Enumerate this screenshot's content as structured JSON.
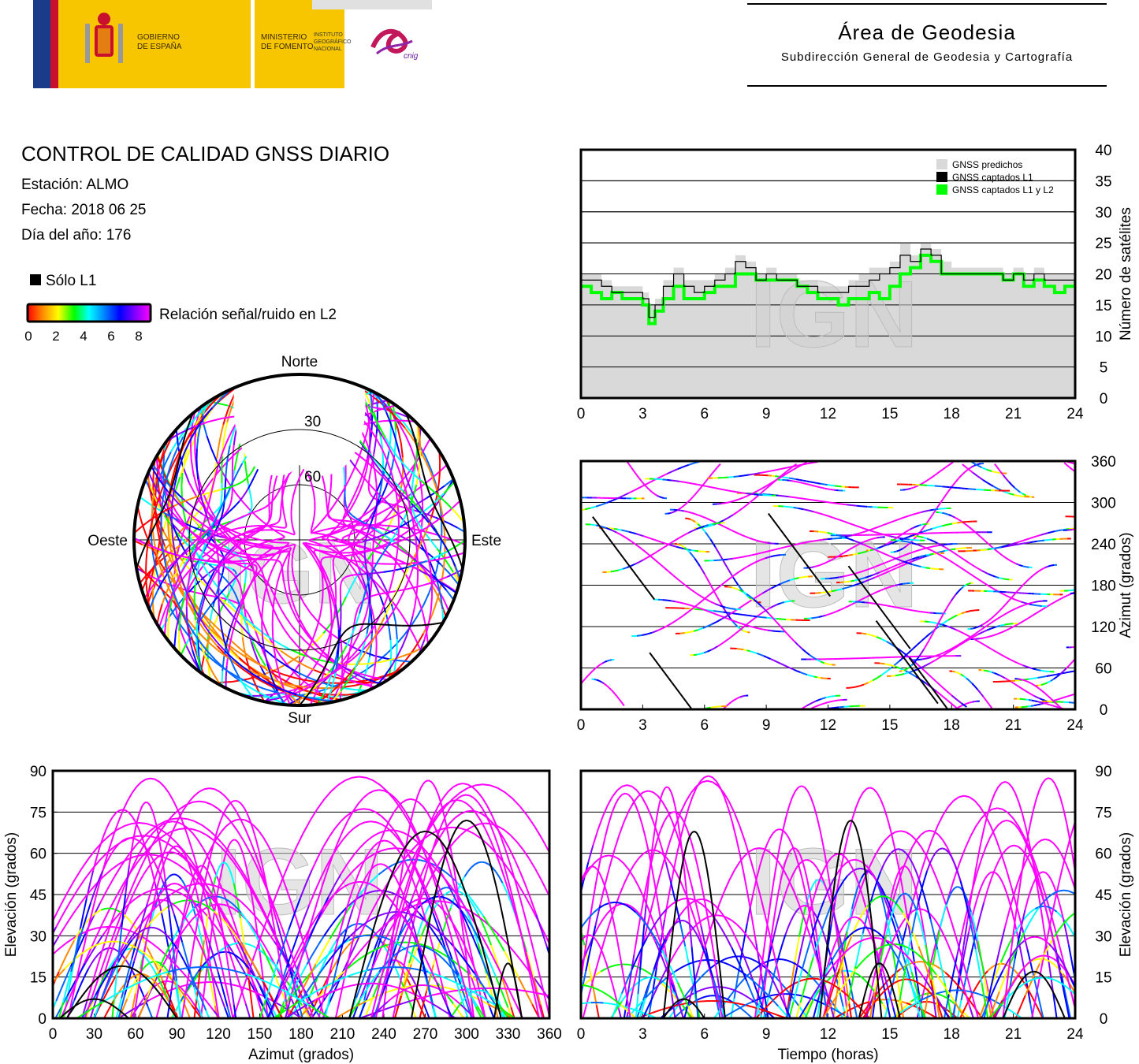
{
  "header": {
    "gov_name": "GOBIERNO\nDE ESPAÑA",
    "ministry": "MINISTERIO\nDE FOMENTO",
    "institute": "INSTITUTO\nGEOGRÁFICO\nNACIONAL",
    "institute_mark": "cnig",
    "area_title": "Área de Geodesia",
    "area_subtitle": "Subdirección General de Geodesia y Cartografía"
  },
  "report": {
    "title": "CONTROL DE CALIDAD GNSS DIARIO",
    "station": "Estación: ALMO",
    "date": "Fecha: 2018 06 25",
    "doy": "Día del año: 176"
  },
  "legend": {
    "l1_only": "Sólo L1",
    "snr_label": "Relación señal/ruido en L2",
    "snr_ticks": [
      "0",
      "2",
      "4",
      "6",
      "8"
    ]
  },
  "watermark": "IGN",
  "colors": {
    "l1_only": "#000000",
    "predicted_fill": "#d9d9d9",
    "l1l2": "#00ff00",
    "grid": "#000000",
    "snr_scale": [
      "#ff0000",
      "#ff8800",
      "#ffff00",
      "#00ff00",
      "#00ffff",
      "#0066ff",
      "#0000ff",
      "#8800ff",
      "#ff00ff"
    ]
  },
  "chart_data": [
    {
      "id": "sky",
      "type": "scatter",
      "title": "",
      "directions": {
        "north": "Norte",
        "south": "Sur",
        "east": "Este",
        "west": "Oeste"
      },
      "elevation_rings": [
        "30",
        "60"
      ],
      "grid": true,
      "description_series": "satellite tracks colored by L2 SNR"
    },
    {
      "id": "nsat",
      "type": "area",
      "xlabel": "",
      "ylabel": "Número de satélites",
      "xlim": [
        0,
        24
      ],
      "ylim": [
        0,
        40
      ],
      "xticks": [
        "0",
        "3",
        "6",
        "9",
        "12",
        "15",
        "18",
        "21",
        "24"
      ],
      "yticks": [
        "0",
        "5",
        "10",
        "15",
        "20",
        "25",
        "30",
        "35",
        "40"
      ],
      "legend_position": "top-right",
      "series": [
        {
          "name": "GNSS predichos",
          "color": "#d9d9d9",
          "x": [
            0,
            0.5,
            1,
            1.5,
            2,
            2.5,
            3,
            3.3,
            3.6,
            4,
            4.5,
            5,
            5.5,
            6,
            6.5,
            7,
            7.5,
            8,
            8.5,
            9,
            9.5,
            10,
            10.5,
            11,
            11.5,
            12,
            12.5,
            13,
            13.5,
            14,
            14.5,
            15,
            15.5,
            16,
            16.5,
            17,
            17.5,
            18,
            18.5,
            19,
            19.5,
            20,
            20.5,
            21,
            21.5,
            22,
            22.5,
            23,
            23.5,
            24
          ],
          "y": [
            20,
            20,
            19,
            18,
            18,
            18,
            17,
            15,
            16,
            19,
            21,
            19,
            19,
            19,
            20,
            21,
            23,
            22,
            20,
            21,
            20,
            20,
            19,
            19,
            18,
            18,
            18,
            19,
            20,
            21,
            21,
            22,
            25,
            23,
            25,
            24,
            22,
            21,
            21,
            21,
            21,
            21,
            20,
            21,
            20,
            21,
            20,
            20,
            20,
            20
          ]
        },
        {
          "name": "GNSS captados L1",
          "color": "#000000",
          "x": [
            0,
            0.5,
            1,
            1.5,
            2,
            2.5,
            3,
            3.3,
            3.6,
            4,
            4.5,
            5,
            5.5,
            6,
            6.5,
            7,
            7.5,
            8,
            8.5,
            9,
            9.5,
            10,
            10.5,
            11,
            11.5,
            12,
            12.5,
            13,
            13.5,
            14,
            14.5,
            15,
            15.5,
            16,
            16.5,
            17,
            17.5,
            18,
            18.5,
            19,
            19.5,
            20,
            20.5,
            21,
            21.5,
            22,
            22.5,
            23,
            23.5,
            24
          ],
          "y": [
            19,
            19,
            18,
            17,
            17,
            17,
            16,
            13,
            15,
            18,
            20,
            18,
            17,
            18,
            19,
            20,
            22,
            21,
            19,
            20,
            19,
            19,
            18,
            18,
            17,
            17,
            17,
            18,
            18,
            19,
            20,
            21,
            23,
            22,
            24,
            23,
            20,
            20,
            20,
            20,
            20,
            20,
            19,
            20,
            19,
            20,
            19,
            19,
            19,
            19
          ]
        },
        {
          "name": "GNSS captados L1 y L2",
          "color": "#00ff00",
          "x": [
            0,
            0.5,
            1,
            1.5,
            2,
            2.5,
            3,
            3.3,
            3.6,
            4,
            4.5,
            5,
            5.5,
            6,
            6.5,
            7,
            7.5,
            8,
            8.5,
            9,
            9.5,
            10,
            10.5,
            11,
            11.5,
            12,
            12.5,
            13,
            13.5,
            14,
            14.5,
            15,
            15.5,
            16,
            16.5,
            17,
            17.5,
            18,
            18.5,
            19,
            19.5,
            20,
            20.5,
            21,
            21.5,
            22,
            22.5,
            23,
            23.5,
            24
          ],
          "y": [
            18,
            17,
            16,
            17,
            16,
            16,
            15,
            12,
            14,
            16,
            18,
            16,
            16,
            17,
            18,
            18,
            20,
            20,
            19,
            19,
            19,
            19,
            18,
            17,
            16,
            16,
            15,
            16,
            16,
            17,
            16,
            18,
            20,
            21,
            23,
            22,
            20,
            20,
            20,
            20,
            20,
            20,
            19,
            20,
            18,
            19,
            18,
            17,
            18,
            19
          ]
        }
      ]
    },
    {
      "id": "azimuth",
      "type": "scatter",
      "xlabel": "",
      "ylabel": "Azimut (grados)",
      "xlim": [
        0,
        24
      ],
      "ylim": [
        0,
        360
      ],
      "xticks": [
        "0",
        "3",
        "6",
        "9",
        "12",
        "15",
        "18",
        "21",
        "24"
      ],
      "yticks": [
        "0",
        "60",
        "120",
        "180",
        "240",
        "300",
        "360"
      ],
      "grid": true
    },
    {
      "id": "elev_az",
      "type": "scatter",
      "xlabel": "Azimut (grados)",
      "ylabel": "Elevación (grados)",
      "xlim": [
        0,
        360
      ],
      "ylim": [
        0,
        90
      ],
      "xticks": [
        "0",
        "30",
        "60",
        "90",
        "120",
        "150",
        "180",
        "210",
        "240",
        "270",
        "300",
        "330",
        "360"
      ],
      "yticks": [
        "0",
        "15",
        "30",
        "45",
        "60",
        "75",
        "90"
      ],
      "grid": true
    },
    {
      "id": "elev_time",
      "type": "scatter",
      "xlabel": "Tiempo (horas)",
      "ylabel": "Elevación (grados)",
      "xlim": [
        0,
        24
      ],
      "ylim": [
        0,
        90
      ],
      "xticks": [
        "0",
        "3",
        "6",
        "9",
        "12",
        "15",
        "18",
        "21",
        "24"
      ],
      "yticks": [
        "0",
        "15",
        "30",
        "45",
        "60",
        "75",
        "90"
      ],
      "grid": true
    }
  ]
}
